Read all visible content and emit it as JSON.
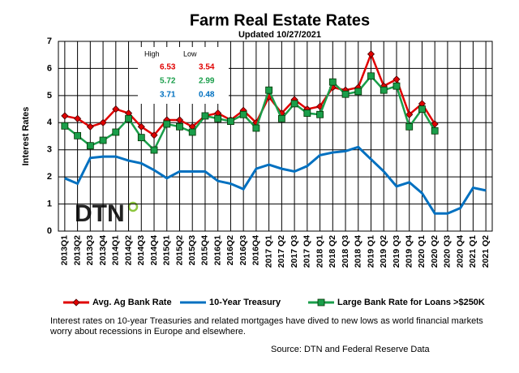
{
  "chart_data": {
    "type": "line",
    "title": "Farm Real Estate Rates",
    "subtitle": "Updated  10/27/2021",
    "y_label": "Interest Rates",
    "logo": "DTN",
    "categories": [
      "2013Q1",
      "2013Q2",
      "2013Q3",
      "2013Q4",
      "2014Q1",
      "2014Q2",
      "2014Q3",
      "2014Q4",
      "2015Q1",
      "2015Q2",
      "2015Q3",
      "2015Q4",
      "2016Q1",
      "2016Q2",
      "2016Q3",
      "2016Q4",
      "2017 Q1",
      "2017 Q2",
      "2017 Q3",
      "2017 Q4",
      "2018 Q1",
      "2018 Q2",
      "2018 Q3",
      "2018 Q4",
      "2019 Q1",
      "2019 Q2",
      "2019 Q3",
      "2019 Q4",
      "2020 Q1",
      "2020 Q2",
      "2020 Q3",
      "2020 Q4",
      "2021 Q1",
      "2021 Q2"
    ],
    "series": [
      {
        "name": "Avg. Ag Bank Rate",
        "color": "#e00000",
        "marker": "diamond",
        "values": [
          4.25,
          4.15,
          3.85,
          4.0,
          4.5,
          4.35,
          3.85,
          3.54,
          4.1,
          4.1,
          3.85,
          4.25,
          4.35,
          4.1,
          4.45,
          4.0,
          4.95,
          4.35,
          4.85,
          4.5,
          4.6,
          5.3,
          5.2,
          5.3,
          6.53,
          5.35,
          5.6,
          4.3,
          4.7,
          3.95,
          null,
          null,
          null,
          null
        ]
      },
      {
        "name": "10-Year Treasury",
        "color": "#0070c0",
        "marker": "none",
        "values": [
          1.95,
          1.75,
          2.7,
          2.75,
          2.75,
          2.6,
          2.5,
          2.25,
          1.95,
          2.2,
          2.2,
          2.2,
          1.85,
          1.75,
          1.55,
          2.3,
          2.45,
          2.3,
          2.2,
          2.4,
          2.8,
          2.9,
          2.95,
          3.1,
          2.65,
          2.2,
          1.65,
          1.8,
          1.4,
          0.65,
          0.65,
          0.85,
          1.6,
          1.5
        ]
      },
      {
        "name": "Large Bank Rate for Loans >$250K",
        "color": "#1a9e4a",
        "marker": "square",
        "values": [
          3.88,
          3.52,
          3.15,
          3.35,
          3.65,
          4.15,
          3.45,
          2.99,
          3.95,
          3.85,
          3.65,
          4.25,
          4.15,
          4.05,
          4.3,
          3.8,
          5.2,
          4.15,
          4.7,
          4.35,
          4.3,
          5.5,
          5.05,
          5.15,
          5.72,
          5.2,
          5.35,
          3.85,
          4.5,
          3.7,
          null,
          null,
          null,
          null
        ]
      }
    ],
    "ylim": [
      0,
      7
    ],
    "yticks": [
      0,
      1,
      2,
      3,
      4,
      5,
      6,
      7
    ],
    "grid": true,
    "summary": {
      "headers": [
        "High",
        "Low"
      ],
      "rows": [
        {
          "color": "#e00000",
          "values": [
            6.53,
            3.54
          ]
        },
        {
          "color": "#1a9e4a",
          "values": [
            5.72,
            2.99
          ]
        },
        {
          "color": "#0070c0",
          "values": [
            3.71,
            0.48
          ]
        }
      ]
    },
    "note": "Interest rates on 10-year Treasuries and related mortgages have dived to new lows as world financial markets worry about recessions in Europe and elsewhere.",
    "source": "Source: DTN and Federal Reserve Data"
  }
}
